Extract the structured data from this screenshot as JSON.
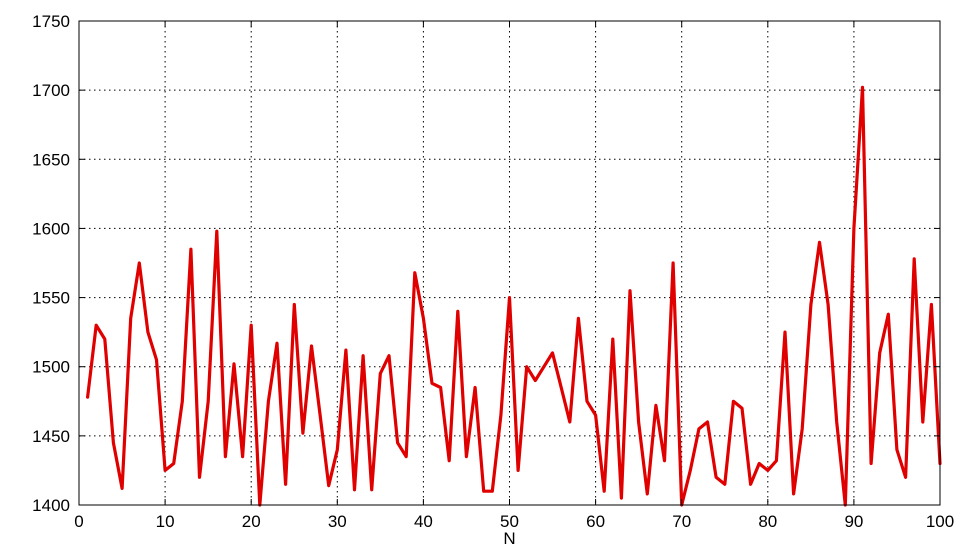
{
  "chart_data": {
    "type": "line",
    "title": "",
    "xlabel": "N",
    "ylabel": "",
    "xlim": [
      0,
      100
    ],
    "ylim": [
      1400,
      1750
    ],
    "x_ticks": [
      0,
      10,
      20,
      30,
      40,
      50,
      60,
      70,
      80,
      90,
      100
    ],
    "y_ticks": [
      1400,
      1450,
      1500,
      1550,
      1600,
      1650,
      1700,
      1750
    ],
    "x_tick_labels": [
      "0",
      "10",
      "20",
      "30",
      "40",
      "50",
      "60",
      "70",
      "80",
      "90",
      "100"
    ],
    "y_tick_labels": [
      "1400",
      "1450",
      "1500",
      "1550",
      "1600",
      "1650",
      "1700",
      "1750"
    ],
    "grid": true,
    "grid_style": "dotted",
    "line_color": "#e00000",
    "series": [
      {
        "x": [
          1,
          2,
          3,
          4,
          5,
          6,
          7,
          8,
          9,
          10,
          11,
          12,
          13,
          14,
          15,
          16,
          17,
          18,
          19,
          20,
          21,
          22,
          23,
          24,
          25,
          26,
          27,
          28,
          29,
          30,
          31,
          32,
          33,
          34,
          35,
          36,
          37,
          38,
          39,
          40,
          41,
          42,
          43,
          44,
          45,
          46,
          47,
          48,
          49,
          50,
          51,
          52,
          53,
          54,
          55,
          56,
          57,
          58,
          59,
          60,
          61,
          62,
          63,
          64,
          65,
          66,
          67,
          68,
          69,
          70,
          71,
          72,
          73,
          74,
          75,
          76,
          77,
          78,
          79,
          80,
          81,
          82,
          83,
          84,
          85,
          86,
          87,
          88,
          89,
          90,
          91,
          92,
          93,
          94,
          95,
          96,
          97,
          98,
          99,
          100
        ],
        "values": [
          1478,
          1530,
          1520,
          1445,
          1412,
          1535,
          1575,
          1525,
          1505,
          1425,
          1430,
          1475,
          1585,
          1420,
          1475,
          1598,
          1435,
          1502,
          1435,
          1530,
          1400,
          1475,
          1517,
          1415,
          1545,
          1452,
          1515,
          1465,
          1414,
          1440,
          1512,
          1411,
          1508,
          1411,
          1495,
          1508,
          1445,
          1435,
          1568,
          1535,
          1488,
          1485,
          1432,
          1540,
          1435,
          1485,
          1410,
          1410,
          1465,
          1550,
          1425,
          1500,
          1490,
          1500,
          1510,
          1485,
          1460,
          1535,
          1475,
          1465,
          1410,
          1520,
          1405,
          1555,
          1460,
          1408,
          1472,
          1432,
          1575,
          1400,
          1425,
          1455,
          1460,
          1420,
          1415,
          1475,
          1470,
          1415,
          1430,
          1425,
          1432,
          1525,
          1408,
          1455,
          1545,
          1590,
          1545,
          1460,
          1400,
          1600,
          1702,
          1430,
          1510,
          1538,
          1440,
          1420,
          1578,
          1460,
          1545,
          1430
        ]
      }
    ]
  }
}
